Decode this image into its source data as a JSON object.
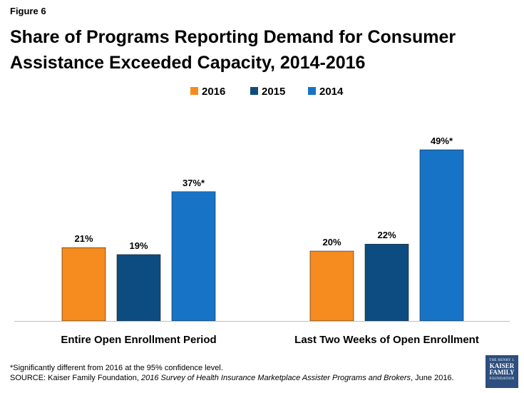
{
  "figure_label": "Figure 6",
  "title_line1": "Share of Programs Reporting Demand for Consumer",
  "title_line2": "Assistance Exceeded Capacity,  2014-2016",
  "footnote": "*Significantly different from 2016 at the 95% confidence level.",
  "source_prefix": "SOURCE: Kaiser Family Foundation, ",
  "source_title": "2016 Survey of Health Insurance Marketplace Assister Programs and Brokers",
  "source_suffix": ", June 2016.",
  "logo": {
    "line1": "THE HENRY J.",
    "line2": "KAISER",
    "line3": "FAMILY",
    "line4": "FOUNDATION"
  },
  "chart_data": {
    "type": "bar",
    "categories": [
      "Entire Open Enrollment Period",
      "Last Two Weeks of Open Enrollment"
    ],
    "series": [
      {
        "name": "2016",
        "color": "#f68b1f",
        "values": [
          21,
          20
        ],
        "labels": [
          "21%",
          "20%"
        ]
      },
      {
        "name": "2015",
        "color": "#0d4c80",
        "values": [
          19,
          22
        ],
        "labels": [
          "19%",
          "22%"
        ]
      },
      {
        "name": "2014",
        "color": "#1773c6",
        "values": [
          37,
          49
        ],
        "labels": [
          "37%*",
          "49%*"
        ]
      }
    ],
    "legend_position": "top-center",
    "ylim": [
      0,
      49
    ],
    "grid": false
  }
}
